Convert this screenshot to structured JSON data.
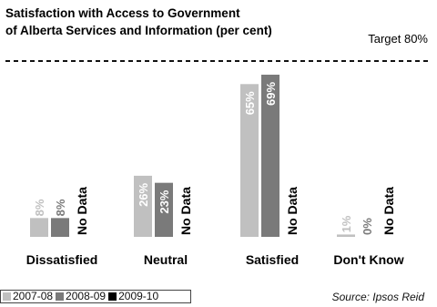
{
  "chart_data": {
    "type": "bar",
    "title": "Satisfaction with Access to Government of Alberta Services and Information (per cent)",
    "title_lines": [
      "Satisfaction with Access to Government",
      "of Alberta Services and Information (per cent)"
    ],
    "target": {
      "label": "Target 80%",
      "value": 80
    },
    "categories": [
      "Dissatisfied",
      "Neutral",
      "Satisfied",
      "Don't Know"
    ],
    "series": [
      {
        "name": "2007-08",
        "color": "#c0c0c0",
        "values": [
          8,
          26,
          65,
          1
        ],
        "labels": [
          "8%",
          "26%",
          "65%",
          "1%"
        ]
      },
      {
        "name": "2008-09",
        "color": "#7a7a7a",
        "values": [
          8,
          23,
          69,
          0
        ],
        "labels": [
          "8%",
          "23%",
          "69%",
          "0%"
        ]
      },
      {
        "name": "2009-10",
        "color": "#000000",
        "values": [
          null,
          null,
          null,
          null
        ],
        "labels": [
          "No Data",
          "No Data",
          "No Data",
          "No Data"
        ]
      }
    ],
    "ylim": [
      0,
      80
    ],
    "grid": false,
    "legend_position": "bottom-left"
  },
  "source": "Source: Ipsos Reid"
}
